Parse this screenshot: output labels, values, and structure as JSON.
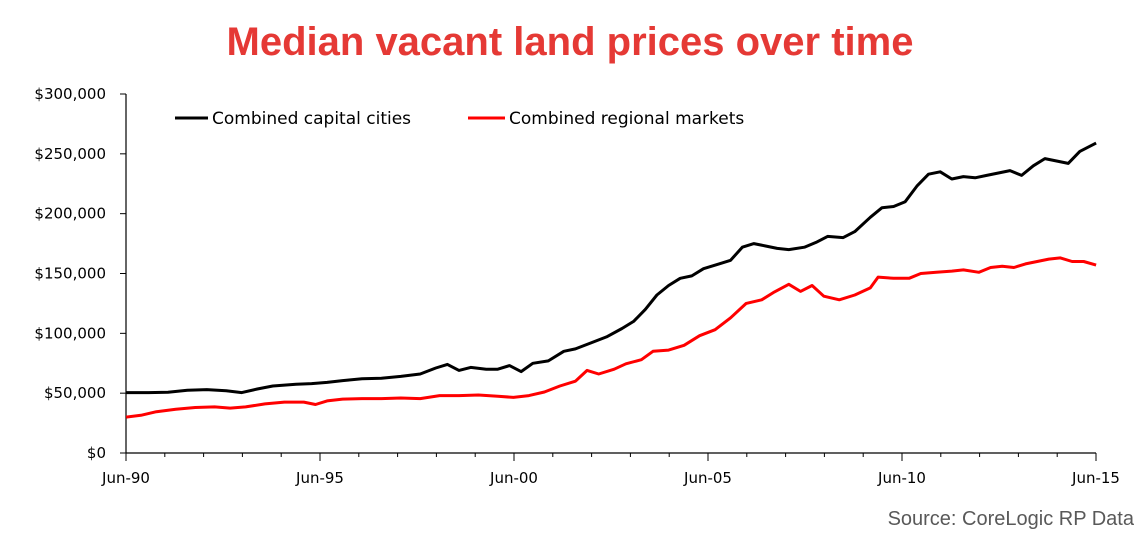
{
  "chart_data": {
    "type": "line",
    "title": "Median vacant land prices over time",
    "xlabel": "",
    "ylabel": "",
    "xlim": [
      1990.4167,
      2015.4167
    ],
    "ylim": [
      0,
      300000
    ],
    "x_tick_values": [
      1990.4167,
      1995.4167,
      2000.4167,
      2005.4167,
      2010.4167,
      2015.4167
    ],
    "x_tick_labels": [
      "Jun-90",
      "Jun-95",
      "Jun-00",
      "Jun-05",
      "Jun-10",
      "Jun-15"
    ],
    "y_tick_values": [
      0,
      50000,
      100000,
      150000,
      200000,
      250000,
      300000
    ],
    "y_tick_labels": [
      "$0",
      "$50,000",
      "$100,000",
      "$150,000",
      "$200,000",
      "$250,000",
      "$300,000"
    ],
    "legend_position": "top-left",
    "series": [
      {
        "name": "Combined capital cities",
        "color": "#000000",
        "points": [
          [
            1990.42,
            50500
          ],
          [
            1991.0,
            50500
          ],
          [
            1991.5,
            50800
          ],
          [
            1992.0,
            52500
          ],
          [
            1992.5,
            53000
          ],
          [
            1993.0,
            52000
          ],
          [
            1993.4,
            50500
          ],
          [
            1993.8,
            53500
          ],
          [
            1994.2,
            56000
          ],
          [
            1994.8,
            57500
          ],
          [
            1995.2,
            58000
          ],
          [
            1995.6,
            59000
          ],
          [
            1996.0,
            60500
          ],
          [
            1996.5,
            62000
          ],
          [
            1997.0,
            62500
          ],
          [
            1997.5,
            64000
          ],
          [
            1998.0,
            66000
          ],
          [
            1998.4,
            71000
          ],
          [
            1998.7,
            74000
          ],
          [
            1999.0,
            69000
          ],
          [
            1999.3,
            71500
          ],
          [
            1999.7,
            70000
          ],
          [
            2000.0,
            70000
          ],
          [
            2000.3,
            73000
          ],
          [
            2000.6,
            68000
          ],
          [
            2000.9,
            75000
          ],
          [
            2001.3,
            77000
          ],
          [
            2001.7,
            85000
          ],
          [
            2002.0,
            87000
          ],
          [
            2002.4,
            92000
          ],
          [
            2002.8,
            97000
          ],
          [
            2003.2,
            104000
          ],
          [
            2003.5,
            110000
          ],
          [
            2003.8,
            120000
          ],
          [
            2004.1,
            132000
          ],
          [
            2004.4,
            140000
          ],
          [
            2004.7,
            146000
          ],
          [
            2005.0,
            148000
          ],
          [
            2005.3,
            154000
          ],
          [
            2005.7,
            158000
          ],
          [
            2006.0,
            161000
          ],
          [
            2006.3,
            172000
          ],
          [
            2006.6,
            175000
          ],
          [
            2006.9,
            173000
          ],
          [
            2007.2,
            171000
          ],
          [
            2007.5,
            170000
          ],
          [
            2007.9,
            172000
          ],
          [
            2008.2,
            176000
          ],
          [
            2008.5,
            181000
          ],
          [
            2008.9,
            180000
          ],
          [
            2009.2,
            185000
          ],
          [
            2009.6,
            197000
          ],
          [
            2009.9,
            205000
          ],
          [
            2010.2,
            206000
          ],
          [
            2010.5,
            210000
          ],
          [
            2010.8,
            223000
          ],
          [
            2011.1,
            233000
          ],
          [
            2011.4,
            235000
          ],
          [
            2011.7,
            229000
          ],
          [
            2012.0,
            231000
          ],
          [
            2012.3,
            230000
          ],
          [
            2012.6,
            232000
          ],
          [
            2012.9,
            234000
          ],
          [
            2013.2,
            236000
          ],
          [
            2013.5,
            232000
          ],
          [
            2013.8,
            240000
          ],
          [
            2014.1,
            246000
          ],
          [
            2014.4,
            244000
          ],
          [
            2014.7,
            242000
          ],
          [
            2015.0,
            252000
          ],
          [
            2015.42,
            259000
          ]
        ]
      },
      {
        "name": "Combined regional markets",
        "color": "#ff0000",
        "points": [
          [
            1990.42,
            30000
          ],
          [
            1990.8,
            31500
          ],
          [
            1991.2,
            34500
          ],
          [
            1991.7,
            36500
          ],
          [
            1992.2,
            38000
          ],
          [
            1992.7,
            38500
          ],
          [
            1993.1,
            37500
          ],
          [
            1993.5,
            38500
          ],
          [
            1994.0,
            41000
          ],
          [
            1994.5,
            42500
          ],
          [
            1995.0,
            42500
          ],
          [
            1995.3,
            40500
          ],
          [
            1995.6,
            43500
          ],
          [
            1996.0,
            45000
          ],
          [
            1996.5,
            45500
          ],
          [
            1997.0,
            45500
          ],
          [
            1997.5,
            46000
          ],
          [
            1998.0,
            45500
          ],
          [
            1998.5,
            48000
          ],
          [
            1999.0,
            48000
          ],
          [
            1999.5,
            48500
          ],
          [
            2000.0,
            47500
          ],
          [
            2000.4,
            46500
          ],
          [
            2000.8,
            48000
          ],
          [
            2001.2,
            51000
          ],
          [
            2001.6,
            56000
          ],
          [
            2002.0,
            60000
          ],
          [
            2002.3,
            69000
          ],
          [
            2002.6,
            66000
          ],
          [
            2003.0,
            70000
          ],
          [
            2003.3,
            74500
          ],
          [
            2003.7,
            78000
          ],
          [
            2004.0,
            85000
          ],
          [
            2004.4,
            86000
          ],
          [
            2004.8,
            90000
          ],
          [
            2005.2,
            98000
          ],
          [
            2005.6,
            103000
          ],
          [
            2006.0,
            113000
          ],
          [
            2006.4,
            125000
          ],
          [
            2006.8,
            128000
          ],
          [
            2007.1,
            134000
          ],
          [
            2007.5,
            141000
          ],
          [
            2007.8,
            135000
          ],
          [
            2008.1,
            140000
          ],
          [
            2008.4,
            131000
          ],
          [
            2008.8,
            128000
          ],
          [
            2009.2,
            132000
          ],
          [
            2009.6,
            138000
          ],
          [
            2009.8,
            147000
          ],
          [
            2010.2,
            146000
          ],
          [
            2010.6,
            146000
          ],
          [
            2010.9,
            150000
          ],
          [
            2011.3,
            151000
          ],
          [
            2011.7,
            152000
          ],
          [
            2012.0,
            153000
          ],
          [
            2012.4,
            151000
          ],
          [
            2012.7,
            155000
          ],
          [
            2013.0,
            156000
          ],
          [
            2013.3,
            155000
          ],
          [
            2013.6,
            158000
          ],
          [
            2013.9,
            160000
          ],
          [
            2014.2,
            162000
          ],
          [
            2014.5,
            163000
          ],
          [
            2014.8,
            160000
          ],
          [
            2015.1,
            160000
          ],
          [
            2015.42,
            157000
          ]
        ]
      }
    ]
  },
  "page": {
    "source": "Source: CoreLogic RP Data",
    "title_color": "#e53935",
    "source_color": "#595959"
  }
}
